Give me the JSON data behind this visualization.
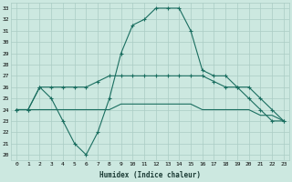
{
  "xlabel": "Humidex (Indice chaleur)",
  "bg_color": "#cce8e0",
  "line_color": "#1a6e60",
  "grid_color": "#aaccC4",
  "xlim": [
    -0.5,
    23.5
  ],
  "ylim": [
    19.5,
    33.5
  ],
  "xticks": [
    0,
    1,
    2,
    3,
    4,
    5,
    6,
    7,
    8,
    9,
    10,
    11,
    12,
    13,
    14,
    15,
    16,
    17,
    18,
    19,
    20,
    21,
    22,
    23
  ],
  "yticks": [
    20,
    21,
    22,
    23,
    24,
    25,
    26,
    27,
    28,
    29,
    30,
    31,
    32,
    33
  ],
  "line1_y": [
    24,
    24,
    26,
    25,
    23,
    21,
    20,
    22,
    25,
    29,
    31.5,
    32,
    33,
    33,
    33,
    31,
    27.5,
    27,
    27,
    26,
    25,
    24,
    23,
    23
  ],
  "line2_y": [
    24,
    24,
    26,
    26,
    26,
    26,
    26,
    26.5,
    27,
    27,
    27,
    27,
    27,
    27,
    27,
    27,
    27,
    26.5,
    26,
    26,
    26,
    25,
    24,
    23
  ],
  "line3_y": [
    24,
    24,
    24,
    24,
    24,
    24,
    24,
    24,
    24,
    24.5,
    24.5,
    24.5,
    24.5,
    24.5,
    24.5,
    24.5,
    24,
    24,
    24,
    24,
    24,
    23.5,
    23.5,
    23
  ]
}
